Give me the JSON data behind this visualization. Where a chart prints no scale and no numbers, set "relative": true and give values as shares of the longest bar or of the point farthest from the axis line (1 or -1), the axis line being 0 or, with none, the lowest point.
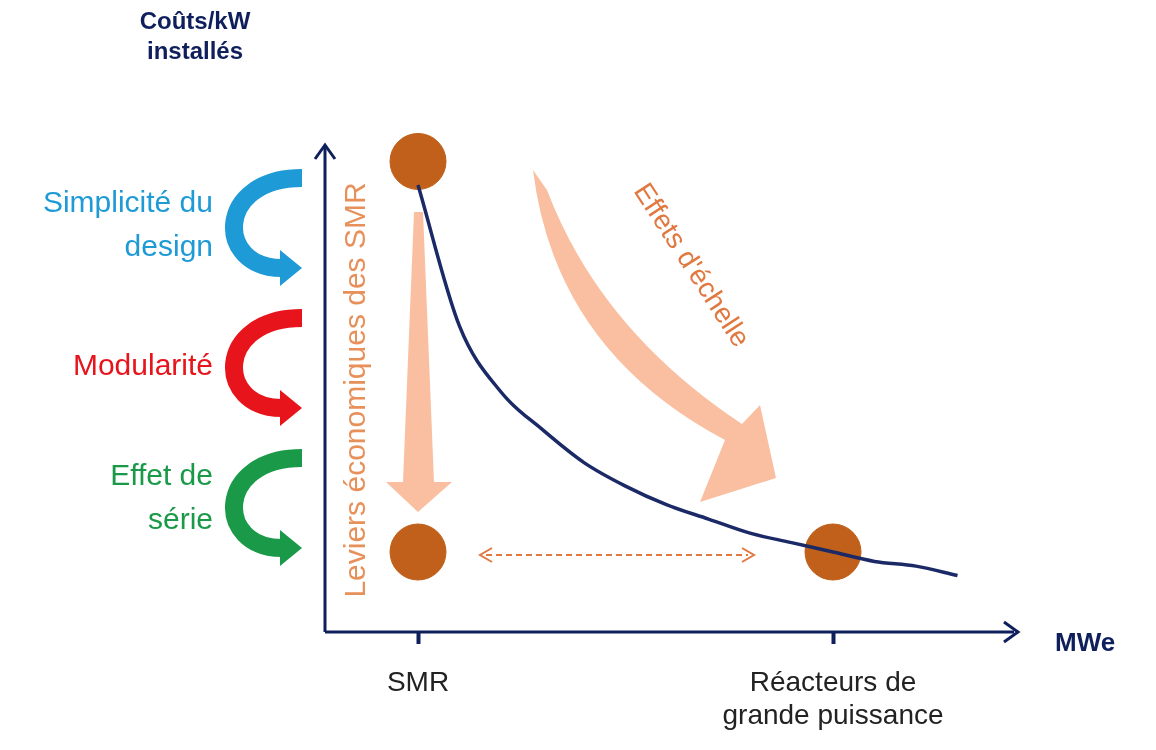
{
  "chart_data": {
    "type": "line",
    "relative": true,
    "xlabel": "MWe",
    "categories": [
      null,
      null,
      "SMR",
      null,
      null,
      null,
      null,
      null,
      null,
      null,
      null,
      null,
      "Réacteurs de grande puissance",
      null,
      null,
      null,
      null
    ],
    "series": [
      {
        "color": "#1b2a66",
        "values": [
          null,
          null,
          0.95,
          0.65,
          0.51,
          0.43,
          0.36,
          0.31,
          0.27,
          0.24,
          0.21,
          0.19,
          0.17,
          0.15,
          0.14,
          0.12,
          null
        ]
      },
      {
        "type": "scatter",
        "color": "#c0601a",
        "x": [
          "SMR",
          "SMR",
          "Réacteurs de grande puissance"
        ],
        "values": [
          1,
          0.17,
          0.17
        ]
      }
    ],
    "annotations": [
      "Coûts/kW installés",
      "Simplicité du design",
      "Modularité",
      "Effet de série",
      "Leviers économiques des SMR",
      "Effets d'échelle"
    ]
  }
}
